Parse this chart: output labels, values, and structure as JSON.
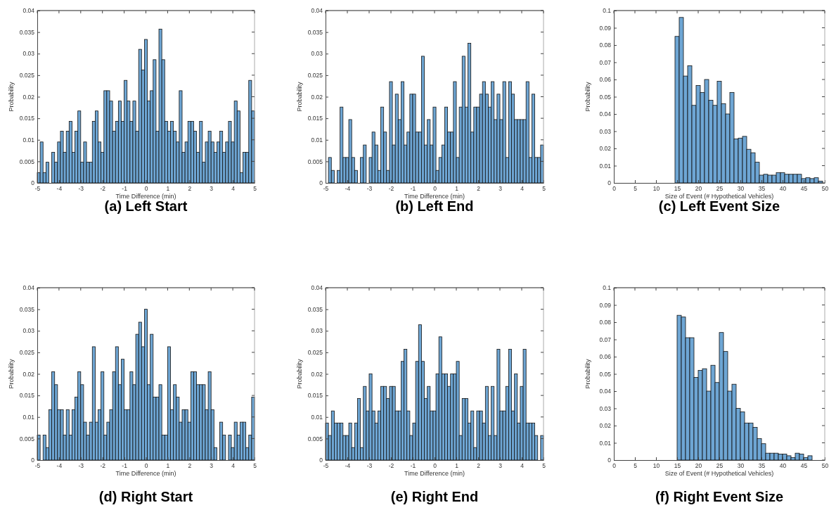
{
  "chart_data": [
    {
      "type": "histogram",
      "title": "(a) Left Start",
      "xlabel": "Time Difference (min)",
      "ylabel": "Probability",
      "color": "#6ea6d4",
      "bins": [
        -5,
        -4.8667,
        -4.7333,
        -4.6,
        -4.4667,
        -4.3333,
        -4.2,
        -4.0667,
        -3.9333,
        -3.8,
        -3.6667,
        -3.5333,
        -3.4,
        -3.2667,
        -3.1333,
        -3,
        -2.8667,
        -2.7333,
        -2.6,
        -2.4667,
        -2.3333,
        -2.2,
        -2.0667,
        -1.9333,
        -1.8,
        -1.6667,
        -1.5333,
        -1.4,
        -1.2667,
        -1.1333,
        -1,
        -0.8667,
        -0.7333,
        -0.6,
        -0.4667,
        -0.3333,
        -0.2,
        -0.0667,
        0.0667,
        0.2,
        0.3333,
        0.4667,
        0.6,
        0.7333,
        0.8667,
        1,
        1.1333,
        1.2667,
        1.4,
        1.5333,
        1.6667,
        1.8,
        1.9333,
        2.0667,
        2.2,
        2.3333,
        2.4667,
        2.6,
        2.7333,
        2.8667,
        3,
        3.1333,
        3.2667,
        3.4,
        3.5333,
        3.6667,
        3.8,
        3.9333,
        4.0667,
        4.2,
        4.3333,
        4.4667,
        4.6,
        4.7333,
        4.8667,
        5
      ],
      "values": [
        0.0024,
        0.0095,
        0.0024,
        0.0048,
        0,
        0.0071,
        0.0048,
        0.0095,
        0.012,
        0.0071,
        0.012,
        0.0143,
        0.0071,
        0.012,
        0.0167,
        0.0048,
        0.0095,
        0.0048,
        0.0048,
        0.0143,
        0.0167,
        0.0095,
        0.0071,
        0.0214,
        0.0214,
        0.019,
        0.012,
        0.0143,
        0.019,
        0.0143,
        0.0238,
        0.019,
        0.0143,
        0.019,
        0.012,
        0.031,
        0.0262,
        0.0333,
        0.019,
        0.0214,
        0.0286,
        0.012,
        0.0357,
        0.0286,
        0.0143,
        0.012,
        0.0143,
        0.012,
        0.0095,
        0.0214,
        0.0071,
        0.0095,
        0.0143,
        0.0143,
        0.012,
        0.0071,
        0.0143,
        0.0048,
        0.0095,
        0.012,
        0.0095,
        0.0071,
        0.0095,
        0.012,
        0.0071,
        0.0095,
        0.0143,
        0.0095,
        0.019,
        0.0167,
        0.0024,
        0.0071,
        0.0071,
        0.0238,
        0.0167
      ],
      "xlim": [
        -5,
        5
      ],
      "xticks": [
        -5,
        -4,
        -3,
        -2,
        -1,
        0,
        1,
        2,
        3,
        4,
        5
      ],
      "ylim": [
        0,
        0.04
      ],
      "yticks": [
        0,
        0.005,
        0.01,
        0.015,
        0.02,
        0.025,
        0.03,
        0.035,
        0.04
      ]
    },
    {
      "type": "histogram",
      "title": "(b) Left End",
      "xlabel": "Time Difference (min)",
      "ylabel": "Probability",
      "color": "#6ea6d4",
      "bins": [
        -5,
        -4.8667,
        -4.7333,
        -4.6,
        -4.4667,
        -4.3333,
        -4.2,
        -4.0667,
        -3.9333,
        -3.8,
        -3.6667,
        -3.5333,
        -3.4,
        -3.2667,
        -3.1333,
        -3,
        -2.8667,
        -2.7333,
        -2.6,
        -2.4667,
        -2.3333,
        -2.2,
        -2.0667,
        -1.9333,
        -1.8,
        -1.6667,
        -1.5333,
        -1.4,
        -1.2667,
        -1.1333,
        -1,
        -0.8667,
        -0.7333,
        -0.6,
        -0.4667,
        -0.3333,
        -0.2,
        -0.0667,
        0.0667,
        0.2,
        0.3333,
        0.4667,
        0.6,
        0.7333,
        0.8667,
        1,
        1.1333,
        1.2667,
        1.4,
        1.5333,
        1.6667,
        1.8,
        1.9333,
        2.0667,
        2.2,
        2.3333,
        2.4667,
        2.6,
        2.7333,
        2.8667,
        3,
        3.1333,
        3.2667,
        3.4,
        3.5333,
        3.6667,
        3.8,
        3.9333,
        4.0667,
        4.2,
        4.3333,
        4.4667,
        4.6,
        4.7333,
        4.8667,
        5
      ],
      "values": [
        0,
        0.0059,
        0.0029,
        0,
        0.0029,
        0.0176,
        0.0059,
        0.0059,
        0.0147,
        0.0059,
        0.0029,
        0,
        0.0059,
        0.0088,
        0,
        0.0059,
        0.0118,
        0.0088,
        0.0029,
        0.0176,
        0.0118,
        0.0029,
        0.0235,
        0.0088,
        0.0206,
        0.0147,
        0.0235,
        0.0088,
        0.0118,
        0.0206,
        0.0206,
        0.0118,
        0.0118,
        0.0294,
        0.0088,
        0.0147,
        0.0088,
        0.0176,
        0.0029,
        0.0059,
        0.0088,
        0.0176,
        0.0118,
        0.0118,
        0.0235,
        0.0059,
        0.0176,
        0.0294,
        0.0176,
        0.0324,
        0.0118,
        0.0176,
        0.0176,
        0.0206,
        0.0235,
        0.0206,
        0.0176,
        0.0235,
        0.0147,
        0.0206,
        0.0147,
        0.0235,
        0.0059,
        0.0235,
        0.0206,
        0.0147,
        0.0147,
        0.0147,
        0.0147,
        0.0235,
        0.0059,
        0.0206,
        0.0059,
        0.0059,
        0.0088
      ],
      "xlim": [
        -5,
        5
      ],
      "xticks": [
        -5,
        -4,
        -3,
        -2,
        -1,
        0,
        1,
        2,
        3,
        4,
        5
      ],
      "ylim": [
        0,
        0.04
      ],
      "yticks": [
        0,
        0.005,
        0.01,
        0.015,
        0.02,
        0.025,
        0.03,
        0.035,
        0.04
      ]
    },
    {
      "type": "histogram",
      "title": "(c) Left Event Size",
      "xlabel": "Size of Event (# Hypothetical Vehicles)",
      "ylabel": "Probability",
      "color": "#6ea6d4",
      "bins": [
        14.5,
        15.5,
        16.5,
        17.5,
        18.5,
        19.5,
        20.5,
        21.5,
        22.5,
        23.5,
        24.5,
        25.5,
        26.5,
        27.5,
        28.5,
        29.5,
        30.5,
        31.5,
        32.5,
        33.5,
        34.5,
        35.5,
        36.5,
        37.5,
        38.5,
        39.5,
        40.5,
        41.5,
        42.5,
        43.5,
        44.5,
        45.5,
        46.5,
        47.5,
        48.5,
        49.5
      ],
      "values": [
        0.085,
        0.096,
        0.062,
        0.068,
        0.045,
        0.0565,
        0.0525,
        0.06,
        0.048,
        0.045,
        0.059,
        0.046,
        0.04,
        0.0525,
        0.0255,
        0.026,
        0.027,
        0.0195,
        0.0175,
        0.012,
        0.0045,
        0.005,
        0.0045,
        0.0045,
        0.006,
        0.006,
        0.005,
        0.005,
        0.005,
        0.005,
        0.0025,
        0.003,
        0.0025,
        0.003,
        0.001
      ],
      "xlim": [
        0,
        50
      ],
      "xticks": [
        0,
        5,
        10,
        15,
        20,
        25,
        30,
        35,
        40,
        45,
        50
      ],
      "ylim": [
        0,
        0.1
      ],
      "yticks": [
        0,
        0.01,
        0.02,
        0.03,
        0.04,
        0.05,
        0.06,
        0.07,
        0.08,
        0.09,
        0.1
      ]
    },
    {
      "type": "histogram",
      "title": "(d) Right Start",
      "xlabel": "Time Difference (min)",
      "ylabel": "Probability",
      "color": "#6ea6d4",
      "bins": [
        -5,
        -4.8667,
        -4.7333,
        -4.6,
        -4.4667,
        -4.3333,
        -4.2,
        -4.0667,
        -3.9333,
        -3.8,
        -3.6667,
        -3.5333,
        -3.4,
        -3.2667,
        -3.1333,
        -3,
        -2.8667,
        -2.7333,
        -2.6,
        -2.4667,
        -2.3333,
        -2.2,
        -2.0667,
        -1.9333,
        -1.8,
        -1.6667,
        -1.5333,
        -1.4,
        -1.2667,
        -1.1333,
        -1,
        -0.8667,
        -0.7333,
        -0.6,
        -0.4667,
        -0.3333,
        -0.2,
        -0.0667,
        0.0667,
        0.2,
        0.3333,
        0.4667,
        0.6,
        0.7333,
        0.8667,
        1,
        1.1333,
        1.2667,
        1.4,
        1.5333,
        1.6667,
        1.8,
        1.9333,
        2.0667,
        2.2,
        2.3333,
        2.4667,
        2.6,
        2.7333,
        2.8667,
        3,
        3.1333,
        3.2667,
        3.4,
        3.5333,
        3.6667,
        3.8,
        3.9333,
        4.0667,
        4.2,
        4.3333,
        4.4667,
        4.6,
        4.7333,
        4.8667,
        5
      ],
      "values": [
        0.0058,
        0,
        0.0058,
        0.0029,
        0.0117,
        0.0205,
        0.0175,
        0.0117,
        0.0117,
        0.0058,
        0.0117,
        0.0058,
        0.0117,
        0.0146,
        0.0205,
        0.0175,
        0.0088,
        0.0058,
        0.0088,
        0.0263,
        0.0088,
        0.0117,
        0.0205,
        0.0058,
        0.0088,
        0.0117,
        0.0205,
        0.0263,
        0.0175,
        0.0234,
        0.0117,
        0.0117,
        0.0205,
        0.0175,
        0.0292,
        0.032,
        0.0263,
        0.035,
        0.0175,
        0.0292,
        0.0146,
        0.0146,
        0.0175,
        0.0058,
        0.0058,
        0.0263,
        0.0117,
        0.0175,
        0.0146,
        0.0088,
        0.0117,
        0.0117,
        0.0088,
        0.0205,
        0.0205,
        0.0175,
        0.0175,
        0.0175,
        0.0117,
        0.0205,
        0.0117,
        0.0029,
        0,
        0.0088,
        0.0058,
        0,
        0.0058,
        0.0029,
        0.0088,
        0.0058,
        0.0088,
        0.0088,
        0.0029,
        0.0058,
        0.0146
      ],
      "xlim": [
        -5,
        5
      ],
      "xticks": [
        -5,
        -4,
        -3,
        -2,
        -1,
        0,
        1,
        2,
        3,
        4,
        5
      ],
      "ylim": [
        0,
        0.04
      ],
      "yticks": [
        0,
        0.005,
        0.01,
        0.015,
        0.02,
        0.025,
        0.03,
        0.035,
        0.04
      ]
    },
    {
      "type": "histogram",
      "title": "(e) Right End",
      "xlabel": "Time Difference (min)",
      "ylabel": "Probability",
      "color": "#6ea6d4",
      "bins": [
        -5,
        -4.8667,
        -4.7333,
        -4.6,
        -4.4667,
        -4.3333,
        -4.2,
        -4.0667,
        -3.9333,
        -3.8,
        -3.6667,
        -3.5333,
        -3.4,
        -3.2667,
        -3.1333,
        -3,
        -2.8667,
        -2.7333,
        -2.6,
        -2.4667,
        -2.3333,
        -2.2,
        -2.0667,
        -1.9333,
        -1.8,
        -1.6667,
        -1.5333,
        -1.4,
        -1.2667,
        -1.1333,
        -1,
        -0.8667,
        -0.7333,
        -0.6,
        -0.4667,
        -0.3333,
        -0.2,
        -0.0667,
        0.0667,
        0.2,
        0.3333,
        0.4667,
        0.6,
        0.7333,
        0.8667,
        1,
        1.1333,
        1.2667,
        1.4,
        1.5333,
        1.6667,
        1.8,
        1.9333,
        2.0667,
        2.2,
        2.3333,
        2.4667,
        2.6,
        2.7333,
        2.8667,
        3,
        3.1333,
        3.2667,
        3.4,
        3.5333,
        3.6667,
        3.8,
        3.9333,
        4.0667,
        4.2,
        4.3333,
        4.4667,
        4.6,
        4.7333,
        4.8667,
        5
      ],
      "values": [
        0.0086,
        0.0057,
        0.0114,
        0.0086,
        0.0086,
        0.0086,
        0.0057,
        0.0057,
        0.0086,
        0.0029,
        0.0086,
        0.0143,
        0.0029,
        0.0171,
        0.0114,
        0.02,
        0.0114,
        0.0086,
        0.0114,
        0.0171,
        0.0171,
        0.0143,
        0.0171,
        0.0171,
        0.0114,
        0.0114,
        0.0229,
        0.0257,
        0.0114,
        0.0057,
        0.0086,
        0.0229,
        0.0314,
        0.0229,
        0.0143,
        0.0171,
        0.0114,
        0.0114,
        0.02,
        0.0286,
        0.02,
        0.02,
        0.0171,
        0.02,
        0.02,
        0.0229,
        0.0057,
        0.0143,
        0.0143,
        0.0086,
        0.0114,
        0.0029,
        0.0114,
        0.0114,
        0.0086,
        0.0171,
        0.0057,
        0.0171,
        0.0057,
        0.0257,
        0.0114,
        0.0114,
        0.0171,
        0.0257,
        0.0114,
        0.02,
        0.0086,
        0.0171,
        0.0257,
        0.0086,
        0.0086,
        0.0086,
        0.0057,
        0,
        0.0057
      ],
      "xlim": [
        -5,
        5
      ],
      "xticks": [
        -5,
        -4,
        -3,
        -2,
        -1,
        0,
        1,
        2,
        3,
        4,
        5
      ],
      "ylim": [
        0,
        0.04
      ],
      "yticks": [
        0,
        0.005,
        0.01,
        0.015,
        0.02,
        0.025,
        0.03,
        0.035,
        0.04
      ]
    },
    {
      "type": "histogram",
      "title": "(f) Right Event Size",
      "xlabel": "Size of Event (# Hypothetical Vehicles)",
      "ylabel": "Probability",
      "color": "#6ea6d4",
      "bins": [
        15,
        16,
        17,
        18,
        19,
        20,
        21,
        22,
        23,
        24,
        25,
        26,
        27,
        28,
        29,
        30,
        31,
        32,
        33,
        34,
        35,
        36,
        37,
        38,
        39,
        40,
        41,
        42,
        43,
        44,
        45,
        46,
        47,
        48,
        49,
        50
      ],
      "values": [
        0.084,
        0.083,
        0.071,
        0.071,
        0.048,
        0.052,
        0.053,
        0.04,
        0.055,
        0.045,
        0.074,
        0.063,
        0.04,
        0.044,
        0.03,
        0.028,
        0.0215,
        0.0215,
        0.019,
        0.0125,
        0.0095,
        0.004,
        0.004,
        0.004,
        0.0035,
        0.0035,
        0.0025,
        0.0015,
        0.004,
        0.0035,
        0.0015,
        0.0025,
        0,
        0,
        null
      ],
      "xlim": [
        0,
        50
      ],
      "xticks": [
        0,
        5,
        10,
        15,
        20,
        25,
        30,
        35,
        40,
        45,
        50
      ],
      "ylim": [
        0,
        0.1
      ],
      "yticks": [
        0,
        0.01,
        0.02,
        0.03,
        0.04,
        0.05,
        0.06,
        0.07,
        0.08,
        0.09,
        0.1
      ]
    }
  ]
}
